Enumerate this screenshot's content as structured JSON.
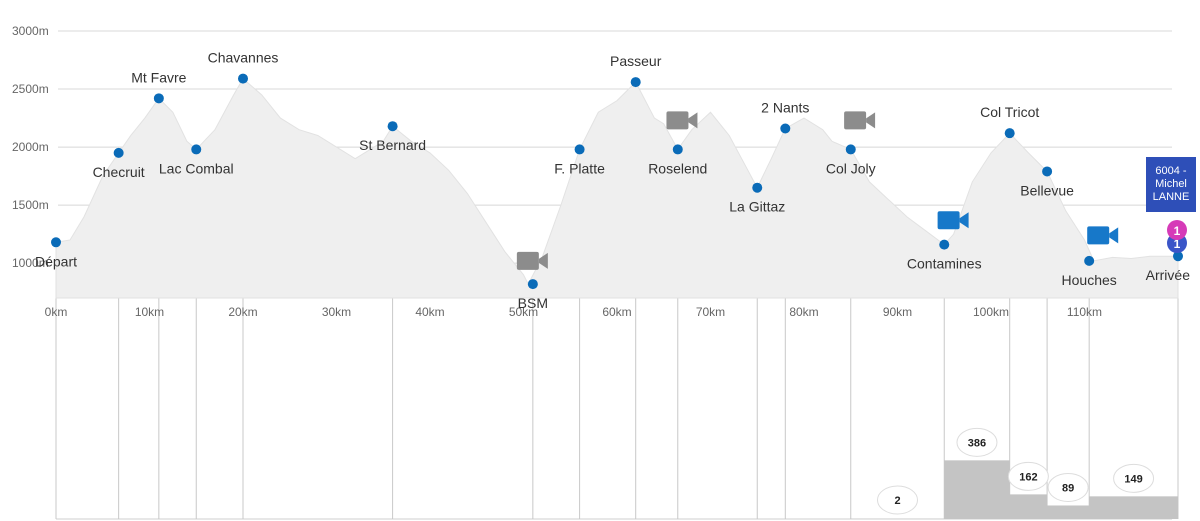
{
  "colors": {
    "profile_fill": "#efefef",
    "profile_stroke": "#e2e2e2",
    "checkpoint_dot": "#0a6bb8",
    "guide_line": "#c8c8c8",
    "bar_fill": "#c4c4c4",
    "camera_gray": "#8c8c8c",
    "camera_blue": "#1778c9",
    "runner_box": "#2e4fb8",
    "runner_marker_pink": "#d63ab8",
    "runner_marker_blue": "#3a55c8"
  },
  "chart_data": {
    "type": "area",
    "title": "",
    "xlabel": "",
    "ylabel": "",
    "xlim": [
      0,
      120
    ],
    "ylim": [
      700,
      3000
    ],
    "y_ticks": [
      "1000m",
      "1500m",
      "2000m",
      "2500m",
      "3000m"
    ],
    "y_tick_values": [
      1000,
      1500,
      2000,
      2500,
      3000
    ],
    "x_ticks": [
      "0km",
      "10km",
      "20km",
      "30km",
      "40km",
      "50km",
      "60km",
      "70km",
      "80km",
      "90km",
      "100km",
      "110km"
    ],
    "x_tick_values": [
      0,
      10,
      20,
      30,
      40,
      50,
      60,
      70,
      80,
      90,
      100,
      110
    ],
    "grid": true,
    "profile": {
      "x": [
        0,
        1.5,
        3,
        5,
        6.7,
        8,
        9.5,
        11,
        12.5,
        14,
        15,
        17,
        19,
        20,
        22,
        24,
        26,
        28,
        30,
        32,
        33,
        35,
        36,
        38,
        40,
        42,
        44,
        46,
        48,
        50,
        50.5,
        52,
        54,
        56,
        58,
        60,
        62,
        64,
        65,
        66.5,
        68,
        70,
        72,
        74,
        75,
        76.5,
        78,
        80,
        82,
        83,
        85,
        87,
        89,
        91,
        93,
        95,
        96,
        98,
        100,
        102,
        104,
        106,
        108,
        110,
        111,
        113,
        115,
        117,
        120
      ],
      "elevation": [
        1180,
        1200,
        1400,
        1750,
        1950,
        2100,
        2250,
        2420,
        2300,
        2050,
        1980,
        2150,
        2450,
        2590,
        2450,
        2250,
        2150,
        2100,
        2000,
        1900,
        1950,
        2050,
        2180,
        2050,
        1950,
        1800,
        1600,
        1350,
        1100,
        900,
        820,
        1050,
        1500,
        1980,
        2300,
        2400,
        2560,
        2250,
        2200,
        1980,
        2150,
        2300,
        2100,
        1800,
        1650,
        1900,
        2160,
        2250,
        2150,
        2050,
        1980,
        1700,
        1550,
        1400,
        1280,
        1160,
        1250,
        1700,
        1950,
        2120,
        1950,
        1790,
        1450,
        1200,
        1020,
        1050,
        1040,
        1060,
        1060
      ]
    },
    "checkpoints": [
      {
        "name": "Départ",
        "km": 0,
        "elev": 1180
      },
      {
        "name": "Checruit",
        "km": 6.7,
        "elev": 1950
      },
      {
        "name": "Mt Favre",
        "km": 11,
        "elev": 2420
      },
      {
        "name": "Lac Combal",
        "km": 15,
        "elev": 1980
      },
      {
        "name": "Chavannes",
        "km": 20,
        "elev": 2590
      },
      {
        "name": "St Bernard",
        "km": 36,
        "elev": 2180
      },
      {
        "name": "BSM",
        "km": 51,
        "elev": 820
      },
      {
        "name": "F. Platte",
        "km": 56,
        "elev": 1980
      },
      {
        "name": "Passeur",
        "km": 62,
        "elev": 2560
      },
      {
        "name": "Roselend",
        "km": 66.5,
        "elev": 1980
      },
      {
        "name": "La Gittaz",
        "km": 75,
        "elev": 1650
      },
      {
        "name": "2 Nants",
        "km": 78,
        "elev": 2160
      },
      {
        "name": "Col Joly",
        "km": 85,
        "elev": 1980
      },
      {
        "name": "Contamines",
        "km": 95,
        "elev": 1160
      },
      {
        "name": "Col Tricot",
        "km": 102,
        "elev": 2120
      },
      {
        "name": "Bellevue",
        "km": 106,
        "elev": 1790
      },
      {
        "name": "Houches",
        "km": 110.5,
        "elev": 1020
      },
      {
        "name": "Arrivée",
        "km": 120,
        "elev": 1060
      }
    ],
    "cameras": [
      {
        "km": 51,
        "elev": 1020,
        "color": "gray"
      },
      {
        "km": 67,
        "elev": 2230,
        "color": "gray"
      },
      {
        "km": 86,
        "elev": 2230,
        "color": "gray"
      },
      {
        "km": 96,
        "elev": 1370,
        "color": "blue"
      },
      {
        "km": 112,
        "elev": 1240,
        "color": "blue"
      }
    ],
    "runner_counts": [
      {
        "from_km": 85,
        "to_km": 95,
        "count": 2
      },
      {
        "from_km": 95,
        "to_km": 102,
        "count": 386
      },
      {
        "from_km": 102,
        "to_km": 106,
        "count": 162
      },
      {
        "from_km": 106,
        "to_km": 110.5,
        "count": 89
      },
      {
        "from_km": 110.5,
        "to_km": 120,
        "count": 149
      }
    ],
    "runner": {
      "bib_line": "6004 -",
      "name_first": "Michel",
      "name_last": "LANNE",
      "marker_pink": "1",
      "marker_blue": "1"
    }
  }
}
